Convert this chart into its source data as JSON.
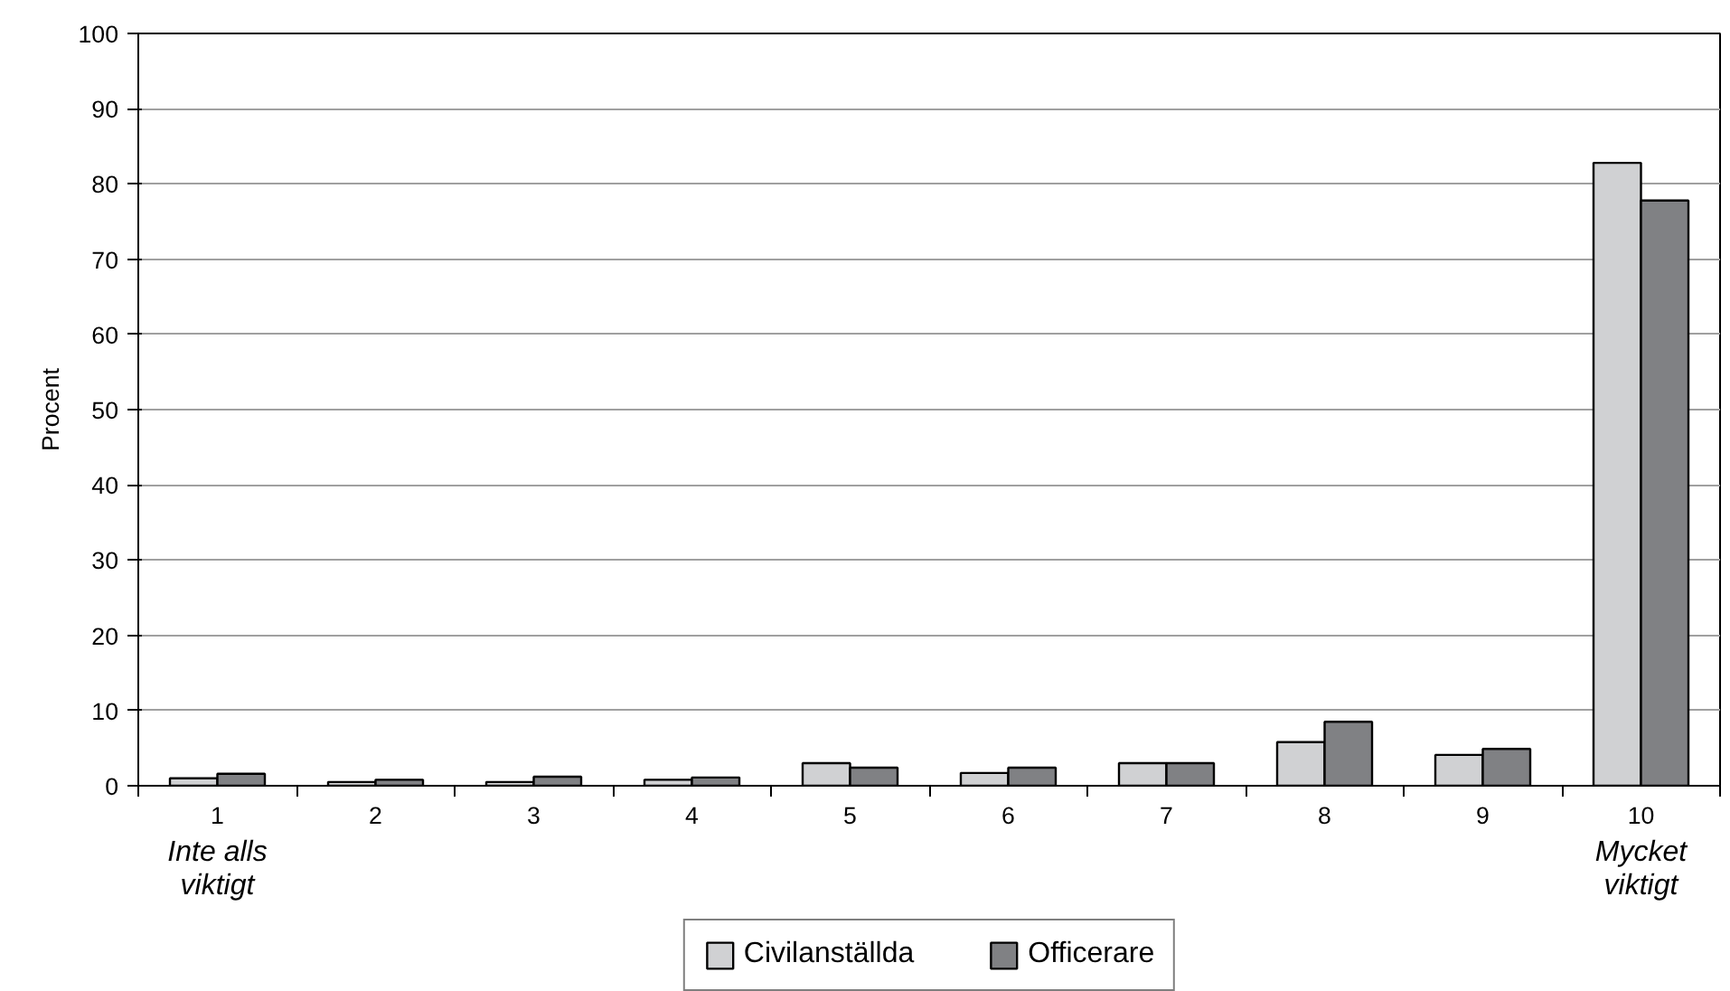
{
  "chart_data": {
    "type": "bar",
    "ylabel": "Procent",
    "categories": [
      "1",
      "2",
      "3",
      "4",
      "5",
      "6",
      "7",
      "8",
      "9",
      "10"
    ],
    "series": [
      {
        "name": "Civilanställda",
        "color": "#d0d1d3",
        "values": [
          1.0,
          0.5,
          0.5,
          0.8,
          3.0,
          1.7,
          3.0,
          5.8,
          4.1,
          82.8
        ]
      },
      {
        "name": "Officerare",
        "color": "#808184",
        "values": [
          1.6,
          0.8,
          1.2,
          1.1,
          2.4,
          2.4,
          3.0,
          8.5,
          4.9,
          77.8
        ]
      }
    ],
    "ylim": [
      0,
      100
    ],
    "yticks": [
      0,
      10,
      20,
      30,
      40,
      50,
      60,
      70,
      80,
      90,
      100
    ],
    "grid": "y",
    "legend": "bottom",
    "annotations": [
      "Inte alls viktigt",
      "Mycket viktigt"
    ]
  }
}
